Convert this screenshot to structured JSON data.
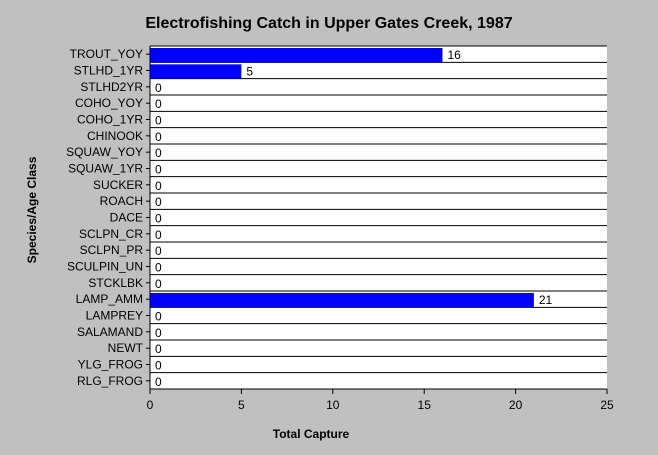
{
  "chart_data": {
    "type": "bar",
    "orientation": "horizontal",
    "title": "Electrofishing Catch in Upper Gates Creek, 1987",
    "xlabel": "Total Capture",
    "ylabel": "Species/Age Class",
    "categories": [
      "TROUT_YOY",
      "STLHD_1YR",
      "STLHD2YR",
      "COHO_YOY",
      "COHO_1YR",
      "CHINOOK",
      "SQUAW_YOY",
      "SQUAW_1YR",
      "SUCKER",
      "ROACH",
      "DACE",
      "SCLPN_CR",
      "SCLPN_PR",
      "SCULPIN_UN",
      "STCKLBK",
      "LAMP_AMM",
      "LAMPREY",
      "SALAMAND",
      "NEWT",
      "YLG_FROG",
      "RLG_FROG"
    ],
    "values": [
      16,
      5,
      0,
      0,
      0,
      0,
      0,
      0,
      0,
      0,
      0,
      0,
      0,
      0,
      0,
      21,
      0,
      0,
      0,
      0,
      0
    ],
    "xlim": [
      0,
      25
    ],
    "xticks": [
      0,
      5,
      10,
      15,
      20,
      25
    ],
    "grid": "horizontal",
    "legend": "none",
    "colors": {
      "bar": "#0000ff",
      "background": "#c0c0c0",
      "plot": "#ffffff",
      "axis": "#000000"
    }
  }
}
